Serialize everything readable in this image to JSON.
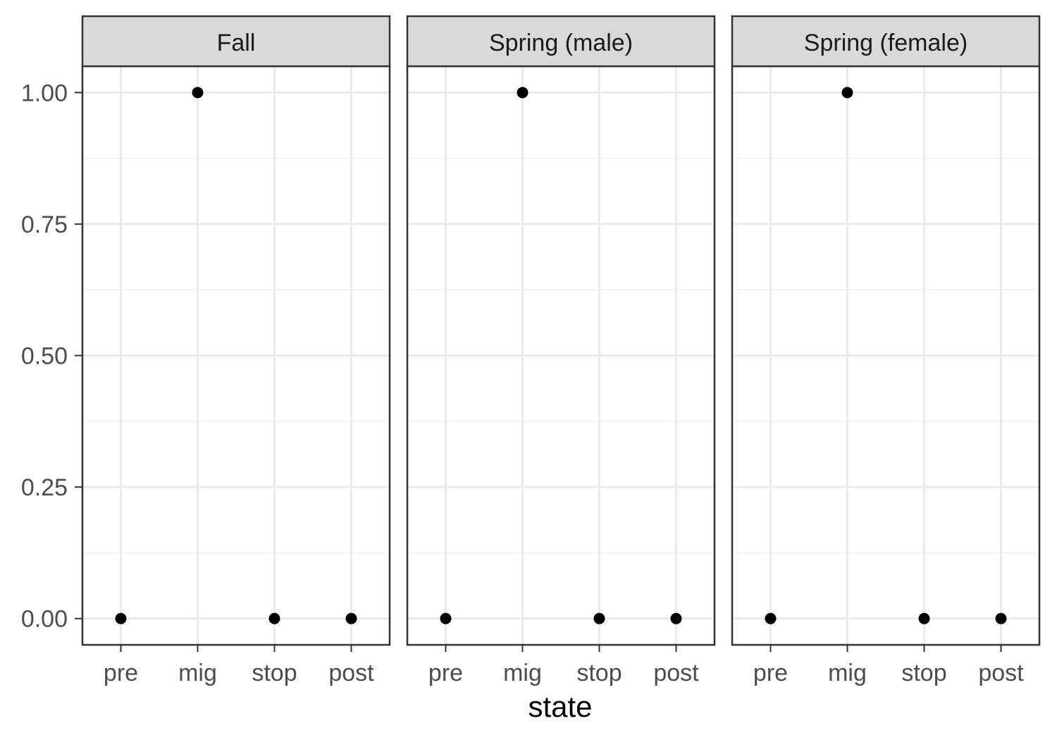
{
  "chart_data": {
    "type": "scatter",
    "title": "",
    "xlabel": "state",
    "ylabel": "",
    "categories": [
      "pre",
      "mig",
      "stop",
      "post"
    ],
    "ylim": [
      -0.05,
      1.05
    ],
    "y_ticks": [
      0,
      0.25,
      0.5,
      0.75,
      1
    ],
    "y_tick_labels": [
      "0.00",
      "0.25",
      "0.50",
      "0.75",
      "1.00"
    ],
    "grid": true,
    "facets": [
      {
        "label": "Fall",
        "values": [
          0,
          1,
          0,
          0
        ]
      },
      {
        "label": "Spring (male)",
        "values": [
          0,
          1,
          0,
          0
        ]
      },
      {
        "label": "Spring (female)",
        "values": [
          0,
          1,
          0,
          0
        ]
      }
    ],
    "colors": {
      "point": "#000000",
      "strip_fill": "#d9d9d9",
      "grid_major": "#ebebeb",
      "grid_minor": "#f2f2f2",
      "border": "#333333"
    }
  }
}
